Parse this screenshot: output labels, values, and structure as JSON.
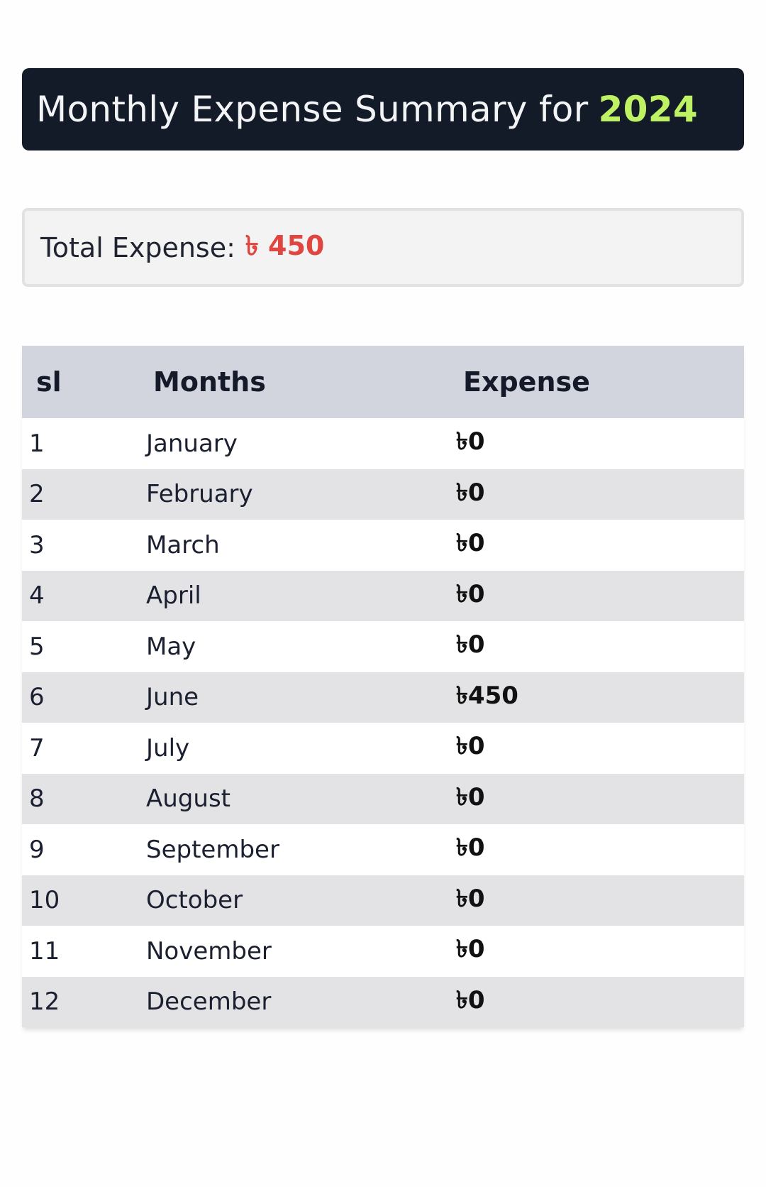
{
  "header": {
    "title_prefix": "Monthly Expense Summary for",
    "year": "2024"
  },
  "summary": {
    "label": "Total Expense:",
    "value": "৳ 450"
  },
  "table": {
    "columns": [
      "sl",
      "Months",
      "Expense"
    ],
    "rows": [
      {
        "sl": "1",
        "month": "January",
        "expense": "৳0"
      },
      {
        "sl": "2",
        "month": "February",
        "expense": "৳0"
      },
      {
        "sl": "3",
        "month": "March",
        "expense": "৳0"
      },
      {
        "sl": "4",
        "month": "April",
        "expense": "৳0"
      },
      {
        "sl": "5",
        "month": "May",
        "expense": "৳0"
      },
      {
        "sl": "6",
        "month": "June",
        "expense": "৳450"
      },
      {
        "sl": "7",
        "month": "July",
        "expense": "৳0"
      },
      {
        "sl": "8",
        "month": "August",
        "expense": "৳0"
      },
      {
        "sl": "9",
        "month": "September",
        "expense": "৳0"
      },
      {
        "sl": "10",
        "month": "October",
        "expense": "৳0"
      },
      {
        "sl": "11",
        "month": "November",
        "expense": "৳0"
      },
      {
        "sl": "12",
        "month": "December",
        "expense": "৳0"
      }
    ]
  },
  "colors": {
    "header_bg": "#131a28",
    "year_accent": "#bef264",
    "total_value": "#e0453f",
    "table_header_bg": "#d2d5de"
  }
}
